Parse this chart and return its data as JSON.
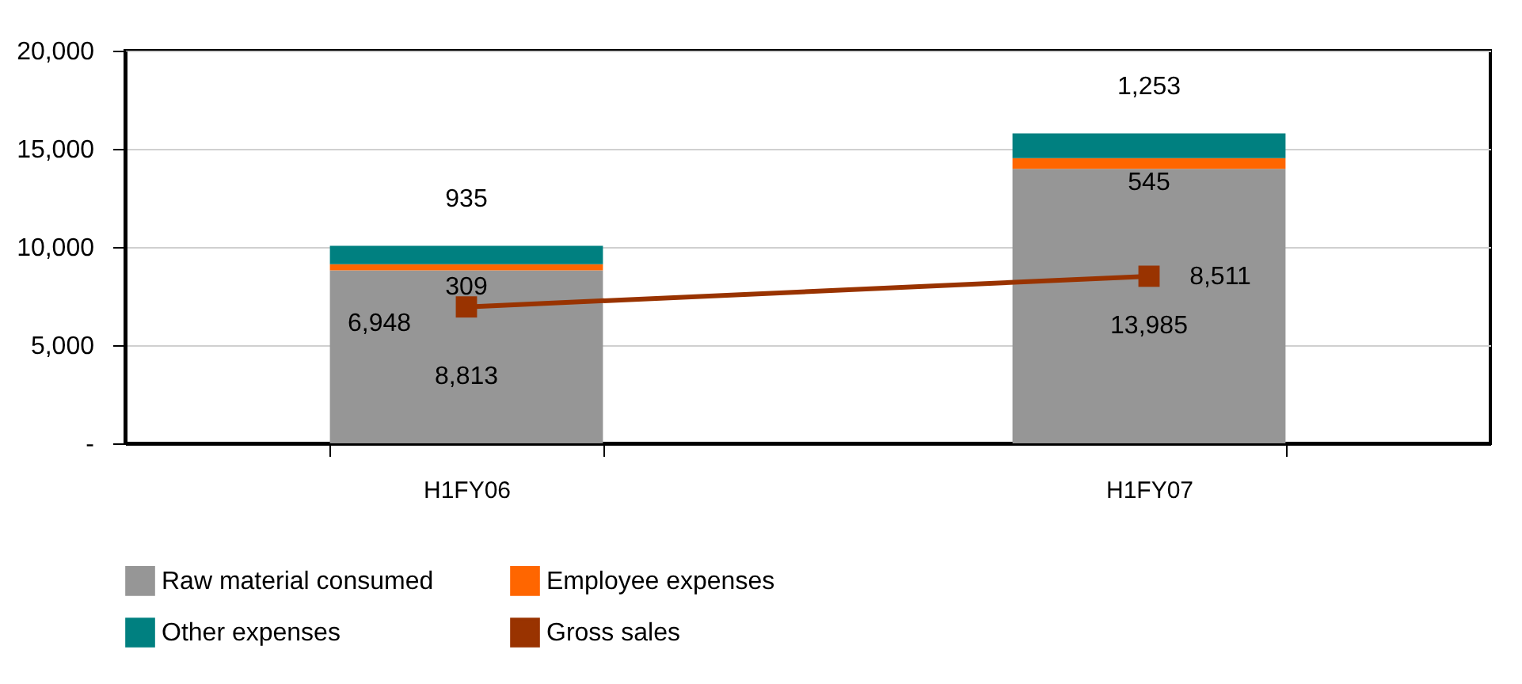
{
  "chart_data": {
    "type": "bar",
    "stacked": true,
    "categories": [
      "H1FY06",
      "H1FY07"
    ],
    "series": [
      {
        "name": "Raw  material consumed",
        "color": "#969696",
        "values": [
          8813,
          13985
        ],
        "value_labels": [
          "8,813",
          "13,985"
        ]
      },
      {
        "name": "Employee expenses",
        "color": "#ff6600",
        "values": [
          309,
          545
        ],
        "value_labels": [
          "309",
          "545"
        ]
      },
      {
        "name": "Other expenses",
        "color": "#008080",
        "values": [
          935,
          1253
        ],
        "value_labels": [
          "935",
          "1,253"
        ]
      },
      {
        "name": "Gross sales",
        "type": "line",
        "color": "#993300",
        "marker": "square",
        "values": [
          6948,
          8511
        ],
        "value_labels": [
          "6,948",
          "8,511"
        ]
      }
    ],
    "ylim": [
      0,
      20000
    ],
    "yticks": [
      {
        "value": 0,
        "label": "-"
      },
      {
        "value": 5000,
        "label": "5,000"
      },
      {
        "value": 10000,
        "label": "10,000"
      },
      {
        "value": 15000,
        "label": "15,000"
      },
      {
        "value": 20000,
        "label": "20,000"
      }
    ],
    "grid": "y",
    "legend": "bottom"
  }
}
